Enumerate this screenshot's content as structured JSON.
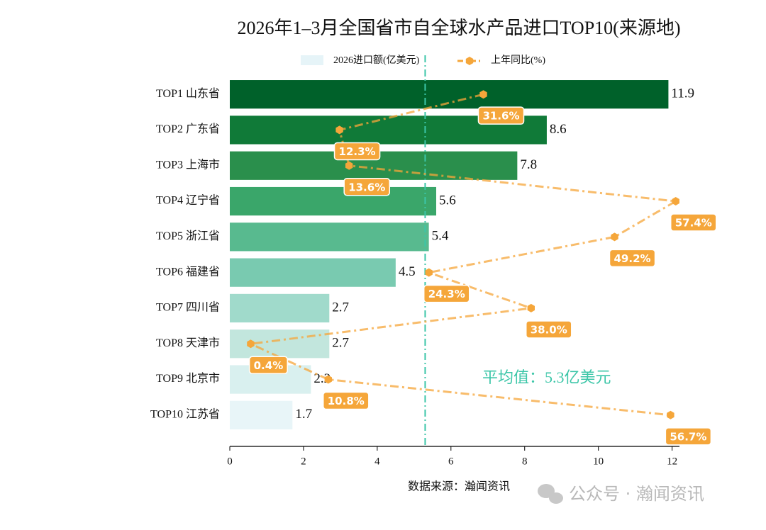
{
  "chart_data": {
    "type": "bar",
    "orientation": "horizontal",
    "title": "2026年1–3月全国省市自全球水产品进口TOP10(来源地)",
    "categories": [
      "TOP1 山东省",
      "TOP2 广东省",
      "TOP3 上海市",
      "TOP4 辽宁省",
      "TOP5 浙江省",
      "TOP6 福建省",
      "TOP7 四川省",
      "TOP8 天津市",
      "TOP9 北京市",
      "TOP10 江苏省"
    ],
    "series": [
      {
        "name": "2026进口额(亿美元)",
        "type": "bar",
        "legend_color": "#e6f4f8",
        "colors": [
          "#00612a",
          "#107a38",
          "#2a8f4c",
          "#3aa66a",
          "#58ba8f",
          "#79cab0",
          "#a0dacb",
          "#c2e6dd",
          "#d9f0ef",
          "#e8f5f8"
        ],
        "values": [
          11.9,
          8.6,
          7.8,
          5.6,
          5.4,
          4.5,
          2.7,
          2.7,
          2.2,
          1.7
        ]
      },
      {
        "name": "上年同比(%)",
        "type": "line",
        "axis": "x2",
        "color": "#f5a63a",
        "values": [
          31.6,
          12.3,
          13.6,
          57.4,
          49.2,
          24.3,
          38.0,
          0.4,
          10.8,
          56.7
        ],
        "value_labels": [
          "31.6%",
          "12.3%",
          "13.6%",
          "57.4%",
          "49.2%",
          "24.3%",
          "38.0%",
          "0.4%",
          "10.8%",
          "56.7%"
        ]
      }
    ],
    "xlim": [
      0,
      12.2
    ],
    "xticks": [
      0,
      2,
      4,
      6,
      8,
      10,
      12
    ],
    "x2lim": [
      -2.4,
      57.9
    ],
    "mean": 5.3,
    "mean_color": "#3cc6a8",
    "mean_label": "平均值：5.3亿美元",
    "source": "数据来源：瀚闻资讯",
    "watermark": "公众号 · 瀚闻资讯"
  }
}
